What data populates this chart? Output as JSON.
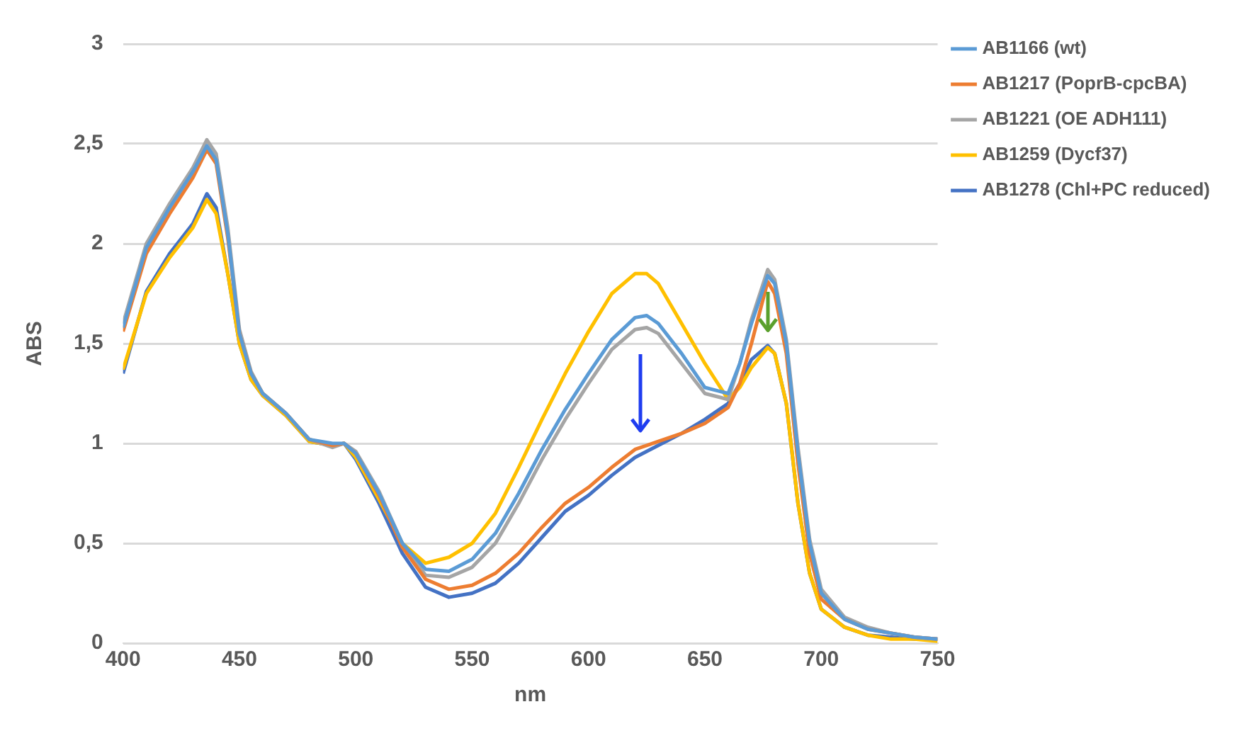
{
  "chart_data": {
    "type": "line",
    "xlabel": "nm",
    "ylabel": "ABS",
    "x": [
      400,
      410,
      420,
      430,
      436,
      440,
      445,
      450,
      455,
      460,
      470,
      480,
      490,
      495,
      500,
      510,
      520,
      530,
      540,
      550,
      560,
      570,
      580,
      590,
      600,
      610,
      620,
      625,
      630,
      640,
      650,
      660,
      665,
      670,
      677,
      680,
      685,
      690,
      695,
      700,
      710,
      720,
      730,
      740,
      750
    ],
    "xlim": [
      400,
      750
    ],
    "xticks": [
      400,
      450,
      500,
      550,
      600,
      650,
      700,
      750
    ],
    "ylim": [
      0,
      3
    ],
    "yticks": [
      0,
      {
        "value": 0.5,
        "label": "0,5"
      },
      1,
      {
        "value": 1.5,
        "label": "1,5"
      },
      2,
      {
        "value": 2.5,
        "label": "2,5"
      },
      3
    ],
    "grid": "y",
    "legend": "right",
    "marker": "none",
    "line_style": "solid",
    "series": [
      {
        "name": "AB1166 (wt)",
        "color": "#5b9bd5",
        "values": [
          1.58,
          1.98,
          2.18,
          2.36,
          2.49,
          2.42,
          2.05,
          1.55,
          1.35,
          1.25,
          1.15,
          1.02,
          1.0,
          1.0,
          0.95,
          0.75,
          0.5,
          0.37,
          0.36,
          0.42,
          0.55,
          0.75,
          0.97,
          1.17,
          1.35,
          1.52,
          1.63,
          1.64,
          1.6,
          1.45,
          1.28,
          1.25,
          1.4,
          1.6,
          1.84,
          1.8,
          1.5,
          0.95,
          0.5,
          0.25,
          0.12,
          0.07,
          0.05,
          0.03,
          0.02
        ]
      },
      {
        "name": "AB1217 (PoprB-cpcBA)",
        "color": "#ed7d31",
        "values": [
          1.56,
          1.95,
          2.15,
          2.33,
          2.47,
          2.4,
          2.03,
          1.55,
          1.35,
          1.25,
          1.15,
          1.02,
          0.99,
          1.0,
          0.95,
          0.74,
          0.48,
          0.32,
          0.27,
          0.29,
          0.35,
          0.45,
          0.58,
          0.7,
          0.78,
          0.88,
          0.97,
          0.99,
          1.01,
          1.05,
          1.1,
          1.18,
          1.3,
          1.5,
          1.81,
          1.75,
          1.45,
          0.9,
          0.45,
          0.22,
          0.12,
          0.07,
          0.05,
          0.03,
          0.02
        ]
      },
      {
        "name": "AB1221 (OE ADH111)",
        "color": "#a5a5a5",
        "values": [
          1.6,
          2.0,
          2.2,
          2.38,
          2.52,
          2.45,
          2.08,
          1.57,
          1.36,
          1.25,
          1.15,
          1.02,
          0.98,
          1.0,
          0.96,
          0.76,
          0.5,
          0.34,
          0.33,
          0.38,
          0.5,
          0.7,
          0.92,
          1.12,
          1.3,
          1.47,
          1.57,
          1.58,
          1.55,
          1.4,
          1.25,
          1.22,
          1.4,
          1.62,
          1.87,
          1.82,
          1.52,
          0.98,
          0.52,
          0.27,
          0.13,
          0.08,
          0.05,
          0.03,
          0.02
        ]
      },
      {
        "name": "AB1259 (Dycf37)",
        "color": "#ffc000",
        "values": [
          1.37,
          1.75,
          1.93,
          2.08,
          2.22,
          2.15,
          1.85,
          1.5,
          1.32,
          1.24,
          1.14,
          1.01,
          0.99,
          1.0,
          0.93,
          0.72,
          0.5,
          0.4,
          0.43,
          0.5,
          0.65,
          0.88,
          1.12,
          1.35,
          1.56,
          1.75,
          1.85,
          1.85,
          1.8,
          1.6,
          1.4,
          1.22,
          1.28,
          1.38,
          1.48,
          1.45,
          1.2,
          0.7,
          0.35,
          0.17,
          0.08,
          0.04,
          0.02,
          0.02,
          0.01
        ]
      },
      {
        "name": "AB1278 (Chl+PC reduced)",
        "color": "#4472c4",
        "values": [
          1.35,
          1.76,
          1.95,
          2.1,
          2.25,
          2.18,
          1.85,
          1.5,
          1.32,
          1.24,
          1.14,
          1.01,
          0.99,
          1.0,
          0.92,
          0.7,
          0.45,
          0.28,
          0.23,
          0.25,
          0.3,
          0.4,
          0.53,
          0.66,
          0.74,
          0.84,
          0.93,
          0.96,
          0.99,
          1.05,
          1.12,
          1.2,
          1.3,
          1.42,
          1.49,
          1.45,
          1.2,
          0.7,
          0.35,
          0.17,
          0.08,
          0.04,
          0.03,
          0.02,
          0.02
        ]
      }
    ]
  }
}
